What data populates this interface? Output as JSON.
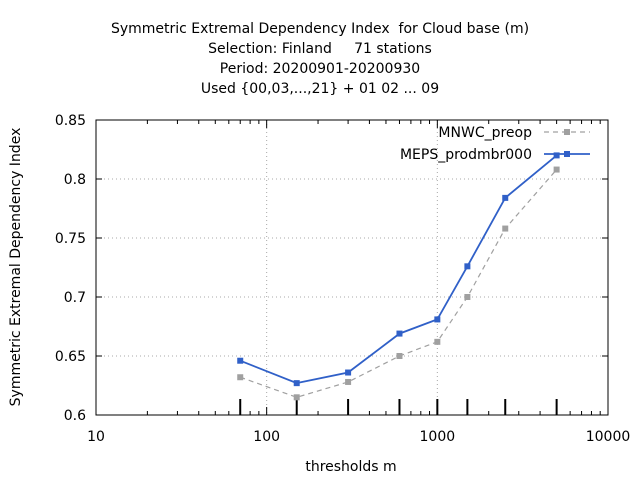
{
  "chart_data": {
    "type": "line",
    "title": [
      "Symmetric Extremal Dependency Index  for Cloud base (m)",
      "Selection: Finland     71 stations",
      "Period: 20200901-20200930",
      "Used {00,03,...,21} + 01 02 ... 09"
    ],
    "xlabel": "thresholds m",
    "ylabel": "Symmetric Extremal Dependency Index",
    "x_scale": "log",
    "xlim": [
      10,
      10000
    ],
    "ylim": [
      0.6,
      0.85
    ],
    "x_ticks": [
      10,
      100,
      1000,
      10000
    ],
    "x_tick_labels": [
      "10",
      "100",
      "1000",
      "10000"
    ],
    "y_ticks": [
      0.6,
      0.65,
      0.7,
      0.75,
      0.8,
      0.85
    ],
    "y_tick_labels": [
      "0.6",
      "0.65",
      "0.7",
      "0.75",
      "0.8",
      "0.85"
    ],
    "grid": true,
    "legend_position": "top-right",
    "threshold_markers": [
      70,
      150,
      300,
      600,
      1000,
      1500,
      2500,
      5000
    ],
    "series": [
      {
        "name": "MNWC_preop",
        "color": "#a0a0a0",
        "dashed": true,
        "x": [
          70,
          150,
          300,
          600,
          1000,
          1500,
          2500,
          5000
        ],
        "values": [
          0.632,
          0.615,
          0.628,
          0.65,
          0.662,
          0.7,
          0.758,
          0.808
        ]
      },
      {
        "name": "MEPS_prodmbr000",
        "color": "#3060c8",
        "dashed": false,
        "x": [
          70,
          150,
          300,
          600,
          1000,
          1500,
          2500,
          5000
        ],
        "values": [
          0.646,
          0.627,
          0.636,
          0.669,
          0.681,
          0.726,
          0.784,
          0.82
        ]
      }
    ]
  }
}
